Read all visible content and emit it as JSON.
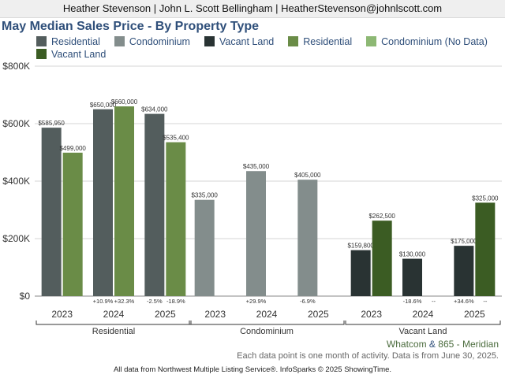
{
  "header": {
    "agent_line": "Heather Stevenson | John L. Scott Bellingham | HeatherStevenson@johnlscott.com"
  },
  "colors": {
    "residential_prev": "#535d5d",
    "condominium_prev": "#838d8c",
    "vacant_prev": "#293333",
    "residential_may": "#6a8c47",
    "condominium_may": "#8db874",
    "vacant_may": "#3b5c23",
    "title": "#2f4f7a"
  },
  "chart_data": {
    "type": "bar",
    "title": "May Median Sales Price - By Property Type",
    "ylim": [
      0,
      800000
    ],
    "y_ticks": [
      "$0",
      "$200K",
      "$400K",
      "$600K",
      "$800K"
    ],
    "y_tick_values": [
      0,
      200000,
      400000,
      600000,
      800000
    ],
    "legend": [
      "Residential",
      "Condominium",
      "Vacant Land",
      "Residential",
      "Condominium (No Data)",
      "Vacant Land"
    ],
    "groups": [
      {
        "name": "Residential",
        "years": [
          {
            "year": "2023",
            "prev": 585950,
            "prev_label": "$585,950",
            "cur": 499000,
            "cur_label": "$499,000",
            "change_prev": "",
            "change_cur": ""
          },
          {
            "year": "2024",
            "prev": 650000,
            "prev_label": "$650,000",
            "cur": 660000,
            "cur_label": "$660,000",
            "change_prev": "+10.9%",
            "change_cur": "+32.3%"
          },
          {
            "year": "2025",
            "prev": 634000,
            "prev_label": "$634,000",
            "cur": 535400,
            "cur_label": "$535,400",
            "change_prev": "-2.5%",
            "change_cur": "-18.9%"
          }
        ]
      },
      {
        "name": "Condominium",
        "years": [
          {
            "year": "2023",
            "prev": 335000,
            "prev_label": "$335,000",
            "cur": null,
            "cur_label": "",
            "change_prev": "",
            "change_cur": ""
          },
          {
            "year": "2024",
            "prev": 435000,
            "prev_label": "$435,000",
            "cur": null,
            "cur_label": "",
            "change_prev": "+29.9%",
            "change_cur": ""
          },
          {
            "year": "2025",
            "prev": 405000,
            "prev_label": "$405,000",
            "cur": null,
            "cur_label": "",
            "change_prev": "-6.9%",
            "change_cur": ""
          }
        ]
      },
      {
        "name": "Vacant Land",
        "years": [
          {
            "year": "2023",
            "prev": 159800,
            "prev_label": "$159,800",
            "cur": 262500,
            "cur_label": "$262,500",
            "change_prev": "",
            "change_cur": ""
          },
          {
            "year": "2024",
            "prev": 130000,
            "prev_label": "$130,000",
            "cur": null,
            "cur_label": "",
            "change_prev": "-18.6%",
            "change_cur": "--"
          },
          {
            "year": "2025",
            "prev": 175000,
            "prev_label": "$175,000",
            "cur": 325000,
            "cur_label": "$325,000",
            "change_prev": "+34.6%",
            "change_cur": "--"
          }
        ]
      }
    ]
  },
  "footer": {
    "source_a": "Whatcom",
    "source_and": "&",
    "source_b": "865 - Meridian",
    "note": "Each data point is one month of activity. Data is from June 30, 2025.",
    "credit": "All data from Northwest Multiple Listing Service®. InfoSparks © 2025 ShowingTime."
  }
}
